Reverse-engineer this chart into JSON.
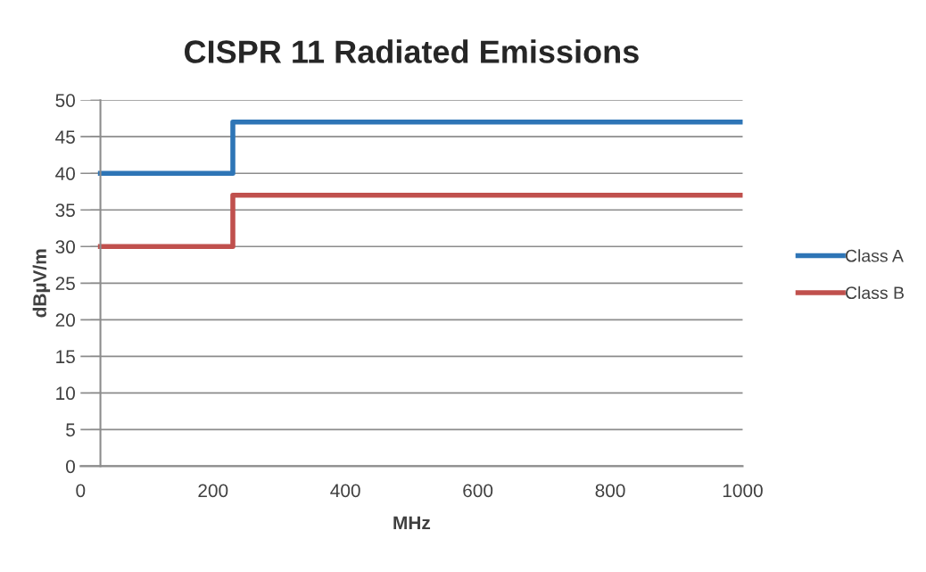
{
  "chart_data": {
    "type": "step",
    "title": "CISPR 11 Radiated Emissions",
    "xlabel": "MHz",
    "ylabel": "dBµV/m",
    "x": [
      30,
      230,
      1000
    ],
    "series": [
      {
        "name": "Class A",
        "color": "#2e75b6",
        "values": [
          40,
          47,
          47
        ]
      },
      {
        "name": "Class B",
        "color": "#c0504d",
        "values": [
          30,
          37,
          37
        ]
      }
    ],
    "xlim": [
      0,
      1000
    ],
    "xticks": [
      0,
      200,
      400,
      600,
      800,
      1000
    ],
    "ylim": [
      0,
      50
    ],
    "yticks": [
      0,
      5,
      10,
      15,
      20,
      25,
      30,
      35,
      40,
      45,
      50
    ],
    "grid": "y",
    "legend": "right",
    "line_style": "solid",
    "marker": "none"
  }
}
